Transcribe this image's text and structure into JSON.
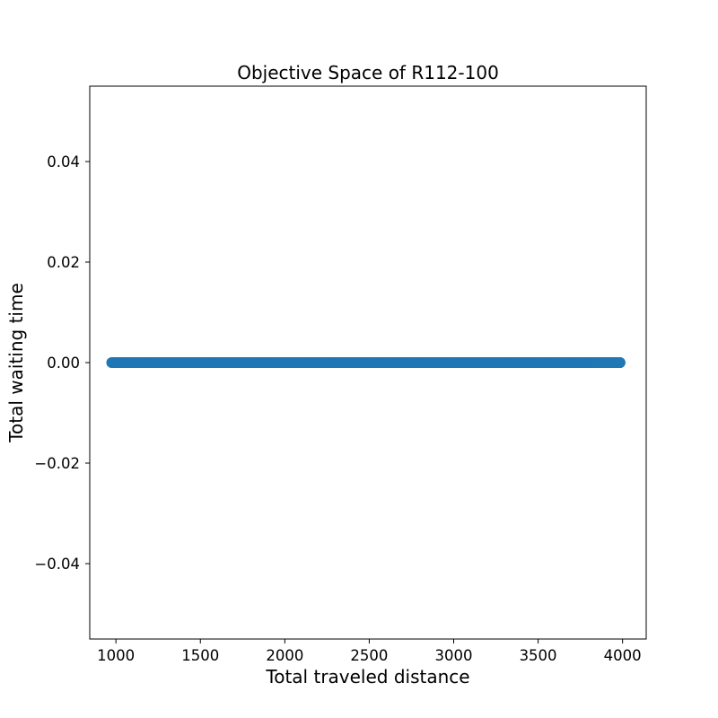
{
  "chart_data": {
    "type": "scatter",
    "title": "Objective Space of R112-100",
    "xlabel": "Total traveled distance",
    "ylabel": "Total waiting time",
    "xlim": [
      845,
      4140
    ],
    "ylim": [
      -0.055,
      0.055
    ],
    "xticks": [
      1000,
      1500,
      2000,
      2500,
      3000,
      3500,
      4000
    ],
    "xtick_labels": [
      "1000",
      "1500",
      "2000",
      "2500",
      "3000",
      "3500",
      "4000"
    ],
    "yticks": [
      0.04,
      0.02,
      0.0,
      -0.02,
      -0.04
    ],
    "ytick_labels": [
      "0.04",
      "0.02",
      "0.00",
      "−0.02",
      "−0.04"
    ],
    "grid": false,
    "legend": "none",
    "series": [
      {
        "color": "#1f77b4",
        "x_range": [
          975,
          3985
        ],
        "x_step": 5,
        "x": [
          3855,
          3865,
          3870,
          3875,
          3880,
          3890,
          3900,
          3910,
          3920,
          3930,
          3945,
          3960,
          3985
        ],
        "y": 0.0
      }
    ]
  }
}
